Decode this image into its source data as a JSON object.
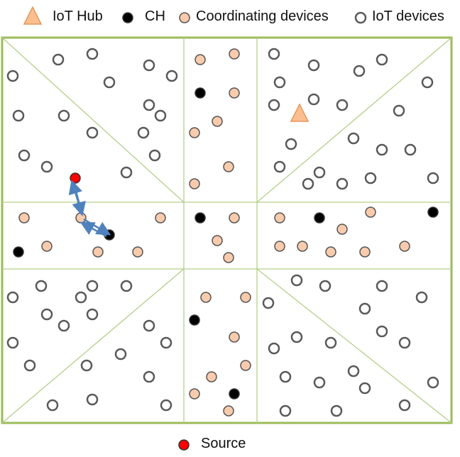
{
  "legend": {
    "hub_label": "IoT Hub",
    "ch_label": "CH",
    "coord_label": "Coordinating devices",
    "iot_label": "IoT devices",
    "source_label": "Source"
  },
  "colors": {
    "border": "#9bbb59",
    "grid_line": "#b5cf8a",
    "hub_fill": "#fbbf8f",
    "hub_stroke": "#e5965b",
    "ch_fill": "#000000",
    "coord_fill": "#f8cbad",
    "coord_stroke": "#555555",
    "iot_fill": "#ffffff",
    "iot_stroke": "#595959",
    "source_fill": "#ff0000",
    "arrow": "#4f81bd"
  },
  "node_types": [
    "IoT Hub",
    "CH",
    "Coordinating devices",
    "IoT devices",
    "Source"
  ]
}
